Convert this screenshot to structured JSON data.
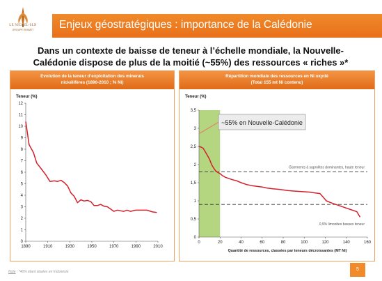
{
  "logo": {
    "name": "LE NICKEL-SLN",
    "sub": "GROUPE ERAMET"
  },
  "header": {
    "title": "Enjeux géostratégiques : importance de la Calédonie"
  },
  "headline": {
    "line1": "Dans un contexte de baisse de teneur à l’échelle mondiale, la Nouvelle-",
    "line2": "Calédonie dispose de plus de la moitié (~55%) des ressources « riches »*"
  },
  "footer": {
    "note_label": "Note",
    "note_text": " : *40% étant situées en Indonésie",
    "page": "5"
  },
  "colors": {
    "accent": "#e8701a",
    "line": "#d3202a",
    "green_band": "#a8cf6b"
  },
  "chart_data": [
    {
      "type": "line",
      "title": "Evolution de la teneur d’exploitation des minerais",
      "subtitle": "nickélifères (1890-2010 ; % Ni)",
      "ylabel": "Teneur (%)",
      "xlabel": "",
      "xlim": [
        1890,
        2010
      ],
      "ylim": [
        0,
        12
      ],
      "xticks": [
        "1890",
        "1910",
        "1930",
        "1950",
        "1970",
        "1990",
        "2010"
      ],
      "yticks": [
        "0",
        "1",
        "2",
        "3",
        "4",
        "5",
        "6",
        "7",
        "8",
        "9",
        "10",
        "11",
        "12"
      ],
      "grid": false,
      "series": [
        {
          "x": [
            1890,
            1893,
            1897,
            1900,
            1904,
            1908,
            1912,
            1916,
            1919,
            1922,
            1925,
            1928,
            1931,
            1934,
            1937,
            1940,
            1943,
            1946,
            1949,
            1952,
            1955,
            1958,
            1961,
            1964,
            1967,
            1970,
            1973,
            1976,
            1979,
            1982,
            1985,
            1990,
            1995,
            2000,
            2005,
            2009
          ],
          "y": [
            10.4,
            8.4,
            7.7,
            6.8,
            6.3,
            5.8,
            5.2,
            5.25,
            5.2,
            5.3,
            5.1,
            4.8,
            4.2,
            3.9,
            3.35,
            3.6,
            3.5,
            3.55,
            3.45,
            3.1,
            3.1,
            3.2,
            3.05,
            3.0,
            2.8,
            2.6,
            2.7,
            2.65,
            2.6,
            2.7,
            2.6,
            2.7,
            2.7,
            2.7,
            2.55,
            2.5
          ]
        }
      ]
    },
    {
      "type": "line",
      "title": "Répartition mondiale des ressources en Ni oxydé",
      "subtitle": "(Total 155 mt Ni contenu)",
      "ylabel": "Teneur (%)",
      "xlabel": "Quantité de ressources, classées par teneurs décroissantes (MT Ni)",
      "xlim": [
        0,
        160
      ],
      "ylim": [
        0,
        3.5
      ],
      "xticks": [
        "0",
        "20",
        "40",
        "60",
        "80",
        "100",
        "120",
        "140",
        "160"
      ],
      "yticks": [
        "0",
        "0,5",
        "1",
        "1,5",
        "2",
        "2,5",
        "3",
        "3,5"
      ],
      "grid": false,
      "highlight_band": {
        "x0": 0,
        "x1": 20
      },
      "reference_lines": [
        {
          "y": 1.8,
          "label": "Gisements à saprolites dominantes, haute teneur"
        },
        {
          "y": 0.9,
          "label": "0,9% limonites basses teneur"
        }
      ],
      "callout": "~55% en Nouvelle-Calédonie",
      "series": [
        {
          "x": [
            0,
            2,
            4,
            6,
            8,
            10,
            12,
            14,
            16,
            18,
            20,
            22,
            25,
            28,
            32,
            36,
            40,
            45,
            50,
            55,
            60,
            65,
            70,
            75,
            80,
            85,
            90,
            95,
            100,
            105,
            110,
            115,
            118,
            121,
            125,
            130,
            135,
            140,
            145,
            150,
            153
          ],
          "y": [
            2.5,
            2.48,
            2.45,
            2.35,
            2.25,
            2.15,
            2.0,
            1.9,
            1.82,
            1.78,
            1.75,
            1.7,
            1.65,
            1.62,
            1.58,
            1.55,
            1.5,
            1.45,
            1.42,
            1.4,
            1.38,
            1.35,
            1.33,
            1.32,
            1.3,
            1.28,
            1.27,
            1.26,
            1.25,
            1.24,
            1.22,
            1.2,
            1.1,
            1.0,
            0.95,
            0.9,
            0.85,
            0.8,
            0.75,
            0.7,
            0.55
          ]
        }
      ]
    }
  ]
}
